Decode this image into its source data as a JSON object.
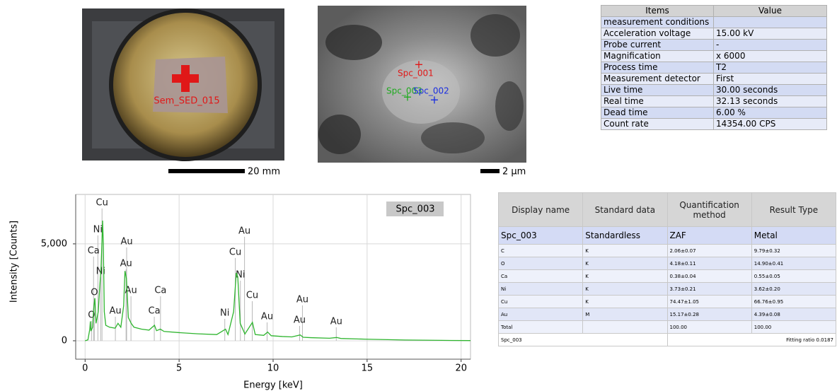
{
  "images": [
    {
      "label": "Sem_SED_015",
      "scale_bar": "20 mm"
    },
    {
      "labels": [
        "Spc_001",
        "Spc_003",
        "Spc_002"
      ],
      "scale_bar": "2 µm"
    }
  ],
  "measurement_table": {
    "header": [
      "Items",
      "Value"
    ],
    "rows": [
      [
        "measurement conditions",
        null
      ],
      [
        "Acceleration voltage",
        "15.00 kV"
      ],
      [
        "Probe current",
        "-"
      ],
      [
        "Magnification",
        "x 6000"
      ],
      [
        "Process time",
        "T2"
      ],
      [
        "Measurement detector",
        "First"
      ],
      [
        "Live time",
        "30.00 seconds"
      ],
      [
        "Real time",
        "32.13 seconds"
      ],
      [
        "Dead time",
        "6.00 %"
      ],
      [
        "Count rate",
        "14354.00 CPS"
      ]
    ]
  },
  "chart_data": {
    "type": "line",
    "xlabel": "Energy [keV]",
    "ylabel": "Intensity [Counts]",
    "x": [
      0,
      0.15,
      0.25,
      0.28,
      0.31,
      0.4,
      0.45,
      0.52,
      0.58,
      0.7,
      0.78,
      0.85,
      0.9,
      0.93,
      0.97,
      1.02,
      1.1,
      1.3,
      1.6,
      1.75,
      1.9,
      2.05,
      2.12,
      2.2,
      2.3,
      2.45,
      2.6,
      3.0,
      3.4,
      3.69,
      3.8,
      4.0,
      4.2,
      5,
      6,
      7,
      7.47,
      7.6,
      7.9,
      8.04,
      8.12,
      8.25,
      8.5,
      8.9,
      9.05,
      9.5,
      9.71,
      9.9,
      10.5,
      11.0,
      11.44,
      11.6,
      12,
      13,
      13.38,
      13.6,
      15,
      17,
      19,
      20.5
    ],
    "series": [
      {
        "name": "Spc_003",
        "color": "#2fb52f",
        "values": [
          0,
          50,
          600,
          1000,
          500,
          700,
          1600,
          2200,
          900,
          1500,
          2800,
          3800,
          5200,
          6200,
          5000,
          1500,
          800,
          700,
          650,
          900,
          700,
          1800,
          3600,
          3200,
          1200,
          900,
          700,
          600,
          550,
          800,
          520,
          600,
          480,
          420,
          360,
          320,
          600,
          320,
          1500,
          3500,
          3300,
          900,
          350,
          950,
          320,
          280,
          450,
          260,
          220,
          200,
          300,
          180,
          160,
          130,
          170,
          120,
          80,
          40,
          20,
          10
        ]
      }
    ],
    "annotations": [
      {
        "text": "Cu",
        "x": 0.9,
        "y": 7117
      },
      {
        "text": "Ni",
        "x": 0.68,
        "y": 5730
      },
      {
        "text": "Ca",
        "x": 0.45,
        "y": 4635
      },
      {
        "text": "Ni",
        "x": 0.83,
        "y": 3577
      },
      {
        "text": "O",
        "x": 0.49,
        "y": 2482
      },
      {
        "text": "O",
        "x": 0.34,
        "y": 1314
      },
      {
        "text": "Au",
        "x": 2.21,
        "y": 5110
      },
      {
        "text": "Au",
        "x": 2.18,
        "y": 3978
      },
      {
        "text": "Au",
        "x": 2.44,
        "y": 2591
      },
      {
        "text": "Au",
        "x": 1.61,
        "y": 1533
      },
      {
        "text": "Ca",
        "x": 4.01,
        "y": 2591
      },
      {
        "text": "Ca",
        "x": 3.68,
        "y": 1533
      },
      {
        "text": "Au",
        "x": 8.48,
        "y": 5657
      },
      {
        "text": "Cu",
        "x": 7.99,
        "y": 4562
      },
      {
        "text": "Ni",
        "x": 8.26,
        "y": 3394
      },
      {
        "text": "Cu",
        "x": 8.89,
        "y": 2336
      },
      {
        "text": "Ni",
        "x": 7.43,
        "y": 1423
      },
      {
        "text": "Au",
        "x": 9.68,
        "y": 1241
      },
      {
        "text": "Au",
        "x": 11.56,
        "y": 2117
      },
      {
        "text": "Au",
        "x": 11.41,
        "y": 1058
      },
      {
        "text": "Au",
        "x": 13.36,
        "y": 985
      }
    ],
    "xlim": [
      -0.5,
      20.5
    ],
    "ylim": [
      -950,
      7550
    ],
    "xticks": [
      0,
      5,
      10,
      15,
      20
    ],
    "yticks": [
      0,
      {
        "value": 5000,
        "label": "5,000"
      }
    ],
    "grid": true,
    "legend": "upper right"
  },
  "quant_table": {
    "header": [
      "Display name",
      "Standard data",
      "Quantification method",
      "Result Type"
    ],
    "rows": [
      [
        "Spc_003",
        "Standardless",
        "ZAF",
        "Metal"
      ],
      [
        "C",
        "K",
        "2.06±0.07",
        "9.79±0.32"
      ],
      [
        "O",
        "K",
        "4.18±0.11",
        "14.90±0.41"
      ],
      [
        "Ca",
        "K",
        "0.38±0.04",
        "0.55±0.05"
      ],
      [
        "Ni",
        "K",
        "3.73±0.21",
        "3.62±0.20"
      ],
      [
        "Cu",
        "K",
        "74.47±1.05",
        "66.76±0.95"
      ],
      [
        "Au",
        "M",
        "15.17±0.28",
        "4.39±0.08"
      ],
      [
        "Total",
        null,
        "100.00",
        "100.00"
      ]
    ],
    "footer": [
      "Spc_003",
      "Fitting ratio 0.0187"
    ]
  }
}
